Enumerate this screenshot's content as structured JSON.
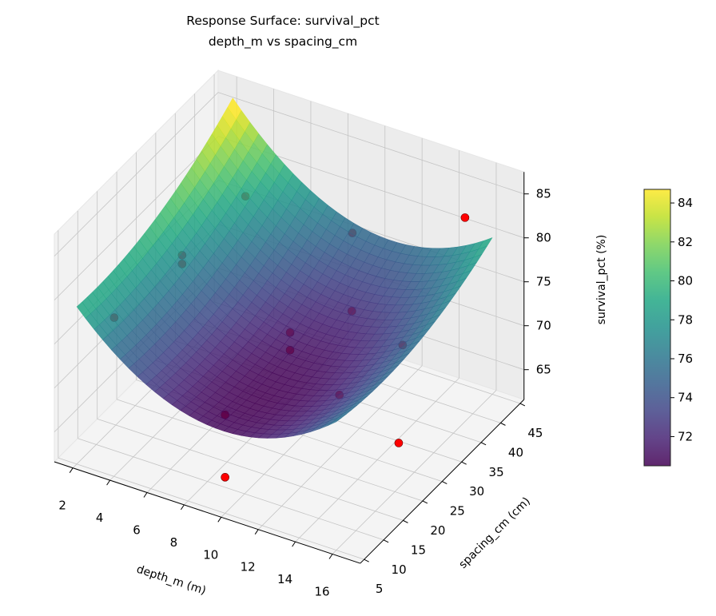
{
  "chart_data": {
    "type": "surface3d",
    "title": "Response Surface: survival_pct",
    "subtitle": "depth_m vs spacing_cm",
    "xlabel": "depth_m (m)",
    "ylabel": "spacing_cm (cm)",
    "zlabel": "survival_pct (%)",
    "xlim": [
      1,
      17.5
    ],
    "ylim": [
      4,
      46
    ],
    "zlim": [
      61.6,
      87.5
    ],
    "xticks": [
      2,
      4,
      6,
      8,
      10,
      12,
      14,
      16
    ],
    "yticks": [
      5,
      10,
      15,
      20,
      25,
      30,
      35,
      40,
      45
    ],
    "zticks": [
      65,
      70,
      75,
      80,
      85
    ],
    "grid": true,
    "surface": {
      "colormap": "viridis",
      "x_range": [
        2,
        16
      ],
      "y_range": [
        5,
        45
      ],
      "model": {
        "intercept": 70.5,
        "x_center": 10,
        "y_center": 14,
        "xx": 0.14,
        "yy": 0.005,
        "xy": -0.005
      }
    },
    "colorbar": {
      "clim": [
        70.5,
        84.7
      ],
      "ticks": [
        72,
        74,
        76,
        78,
        80,
        82,
        84
      ],
      "location": "right"
    },
    "points": [
      {
        "depth": 10,
        "spacing": 5,
        "survival": 65.7,
        "occluded": false
      },
      {
        "depth": 16,
        "spacing": 21,
        "survival": 66.7,
        "occluded": false
      },
      {
        "depth": 16,
        "spacing": 38,
        "survival": 84.8,
        "occluded": false
      },
      {
        "depth": 10,
        "spacing": 5,
        "survival": 72.8,
        "occluded": true
      },
      {
        "depth": 9.3,
        "spacing": 25,
        "survival": 72.8,
        "occluded": true
      },
      {
        "depth": 9.3,
        "spacing": 25,
        "survival": 70.8,
        "occluded": true
      },
      {
        "depth": 16,
        "spacing": 22,
        "survival": 77.4,
        "occluded": true
      },
      {
        "depth": 14,
        "spacing": 15.3,
        "survival": 73.3,
        "occluded": true
      },
      {
        "depth": 12,
        "spacing": 28,
        "survival": 75.8,
        "occluded": true
      },
      {
        "depth": 9,
        "spacing": 42.4,
        "survival": 76.2,
        "occluded": true
      },
      {
        "depth": 5,
        "spacing": 34,
        "survival": 81.3,
        "occluded": true
      },
      {
        "depth": 4,
        "spacing": 22.5,
        "survival": 79.0,
        "occluded": true
      },
      {
        "depth": 4,
        "spacing": 22.5,
        "survival": 78.0,
        "occluded": true
      },
      {
        "depth": 2,
        "spacing": 14.6,
        "survival": 74.0,
        "occluded": true
      }
    ],
    "point_color": "#ff0000"
  }
}
